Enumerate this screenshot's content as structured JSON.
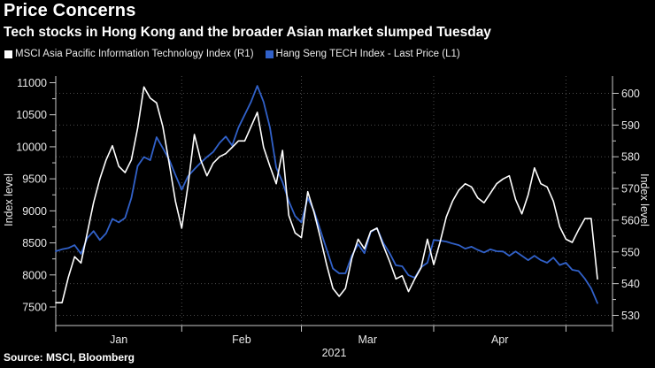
{
  "header": {
    "title": "Price Concerns",
    "subtitle": "Tech stocks in Hong Kong and the broader Asian market slumped Tuesday"
  },
  "source": "Source: MSCI, Bloomberg",
  "chart_data": {
    "type": "line",
    "title": "Price Concerns",
    "subtitle": "Tech stocks in Hong Kong and the broader Asian market slumped Tuesday",
    "source": "Source: MSCI, Bloomberg",
    "grid": "dotted horizontal lines at right-axis ticks, dotted vertical lines at month starts",
    "legend_position": "top-left",
    "x_axis": {
      "months": [
        "Jan",
        "Feb",
        "Mar",
        "Apr"
      ],
      "year_label": "2021",
      "month_start_point_index": [
        0,
        20,
        39,
        60,
        81
      ],
      "total_points": 87
    },
    "left_axis": {
      "label": "Index level",
      "min": 7500,
      "max": 11000,
      "ticks": [
        7500,
        8000,
        8500,
        9000,
        9500,
        10000,
        10500,
        11000
      ],
      "minor_tick_step": 250
    },
    "right_axis": {
      "label": "Index level",
      "min": 530,
      "max": 600,
      "ticks": [
        530,
        540,
        550,
        560,
        570,
        580,
        590,
        600
      ],
      "minor_tick_step": 5
    },
    "series": [
      {
        "name": "MSCI Asia Pacific Information Technology Index (R1)",
        "axis": "right",
        "color": "#ffffff",
        "values": [
          534,
          534,
          542,
          548.5,
          546.5,
          556,
          565.5,
          573,
          579,
          583.5,
          577,
          575,
          579,
          589,
          602,
          598.5,
          597,
          589.5,
          578,
          566,
          557.5,
          571,
          587,
          579,
          574,
          578,
          580,
          581,
          583,
          585,
          585,
          589.5,
          594,
          583,
          577,
          571.5,
          582,
          561.5,
          556,
          554.5,
          569,
          562.5,
          554.5,
          546,
          538.5,
          536,
          538.5,
          548,
          554,
          551,
          556.5,
          557.5,
          552,
          547,
          541.5,
          542.5,
          537.5,
          541.5,
          545,
          554,
          546,
          553,
          561,
          566,
          569.5,
          571.5,
          570.5,
          567,
          565.5,
          568.5,
          571.5,
          573,
          574,
          566.5,
          562,
          568,
          576.5,
          571.5,
          570.5,
          566,
          558,
          554,
          553,
          557,
          560.5,
          560.5,
          541.5
        ]
      },
      {
        "name": "Hang Seng TECH Index - Last Price (L1)",
        "axis": "left",
        "color": "#3161c9",
        "values": [
          8370,
          8400,
          8420,
          8465,
          8330,
          8575,
          8685,
          8545,
          8650,
          8875,
          8820,
          8890,
          9200,
          9700,
          9840,
          9790,
          10150,
          9980,
          9800,
          9560,
          9330,
          9540,
          9650,
          9750,
          9840,
          9920,
          10060,
          10160,
          10020,
          10300,
          10500,
          10700,
          10950,
          10700,
          10300,
          9675,
          9450,
          9150,
          8920,
          8820,
          9200,
          9000,
          8700,
          8400,
          8100,
          8025,
          8025,
          8300,
          8480,
          8340,
          8670,
          8730,
          8500,
          8340,
          8150,
          8135,
          7995,
          7955,
          8120,
          8190,
          8545,
          8535,
          8520,
          8490,
          8465,
          8410,
          8440,
          8390,
          8350,
          8400,
          8370,
          8365,
          8300,
          8365,
          8300,
          8230,
          8300,
          8230,
          8190,
          8270,
          8155,
          8190,
          8080,
          8060,
          7940,
          7790,
          7560
        ]
      }
    ]
  }
}
